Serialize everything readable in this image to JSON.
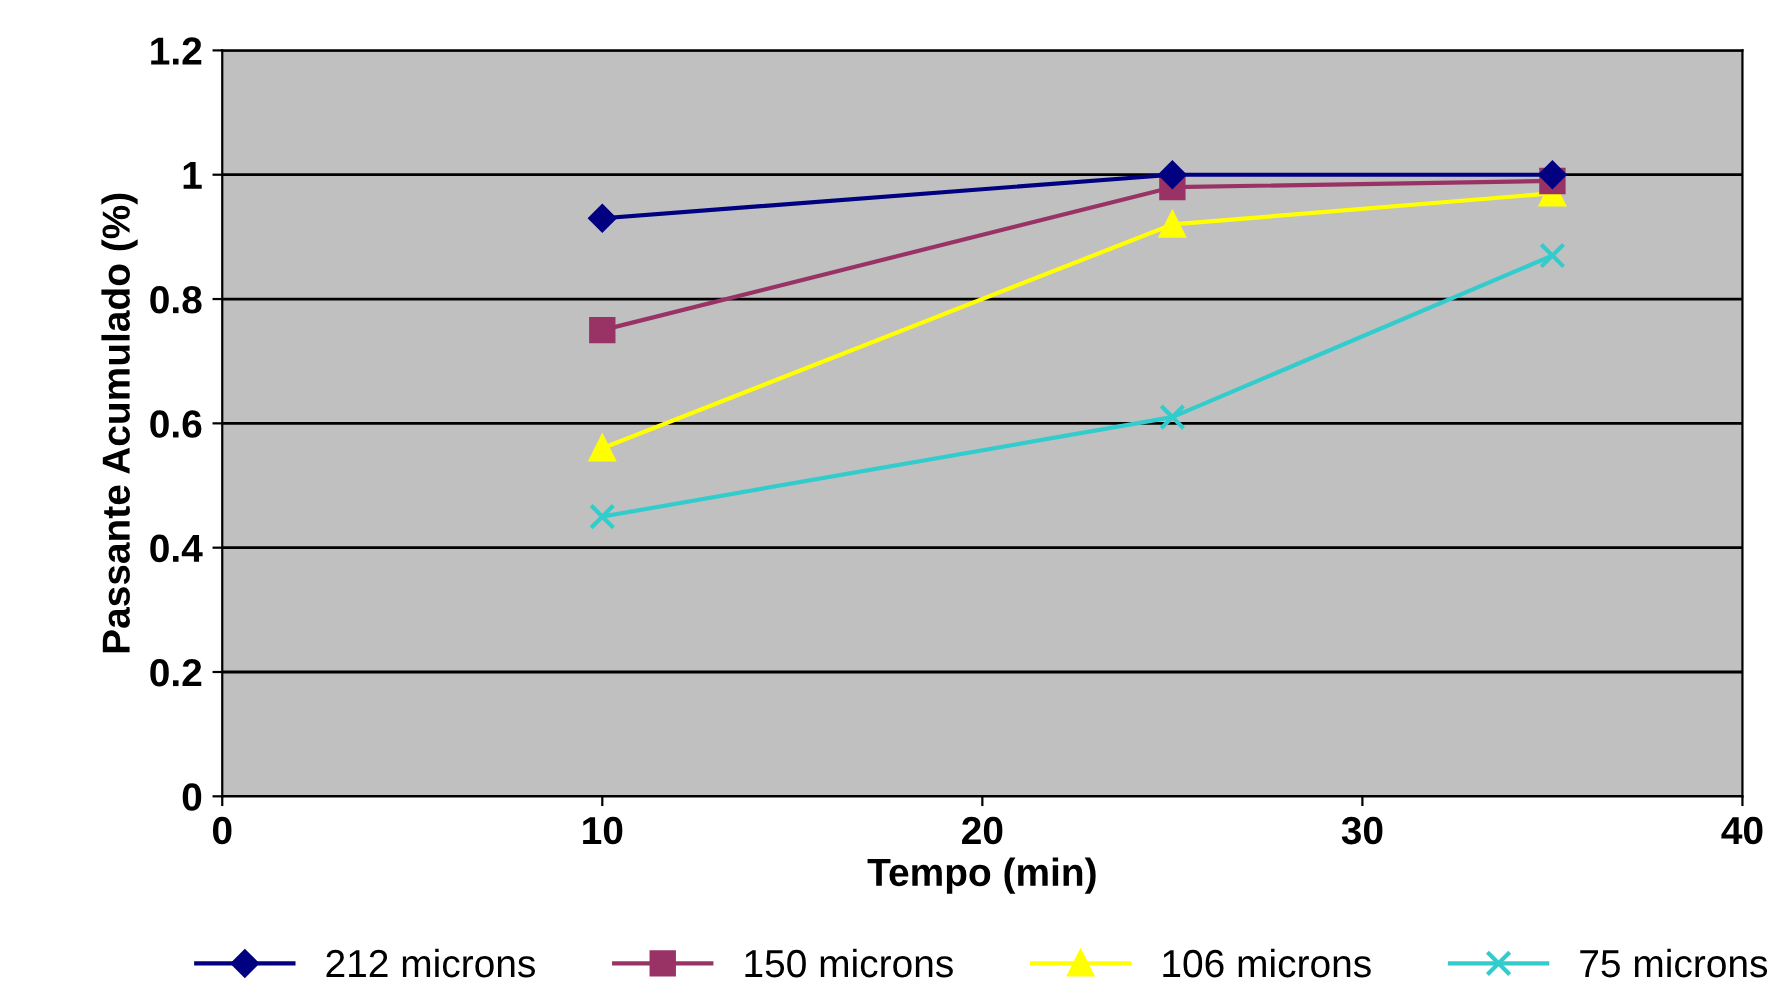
{
  "chart_data": {
    "type": "line",
    "xlabel": "Tempo (min)",
    "ylabel": "Passante Acumulado (%)",
    "xlim": [
      0,
      40
    ],
    "xticks": [
      0,
      10,
      20,
      30,
      40
    ],
    "ylim": [
      0,
      1.2
    ],
    "yticks": [
      0,
      0.2,
      0.4,
      0.6,
      0.8,
      1,
      1.2
    ],
    "grid": "y",
    "legend": "bottom",
    "x": [
      10,
      25,
      35
    ],
    "series": [
      {
        "name": "212 microns",
        "color": "#000080",
        "marker": "diamond",
        "values": [
          0.93,
          1.0,
          1.0
        ]
      },
      {
        "name": "150 microns",
        "color": "#993366",
        "marker": "square",
        "values": [
          0.75,
          0.98,
          0.99
        ]
      },
      {
        "name": "106 microns",
        "color": "#ffff00",
        "marker": "triangle",
        "values": [
          0.56,
          0.92,
          0.97
        ]
      },
      {
        "name": "75 microns",
        "color": "#33cccc",
        "marker": "cross",
        "values": [
          0.45,
          0.61,
          0.87
        ]
      }
    ]
  }
}
